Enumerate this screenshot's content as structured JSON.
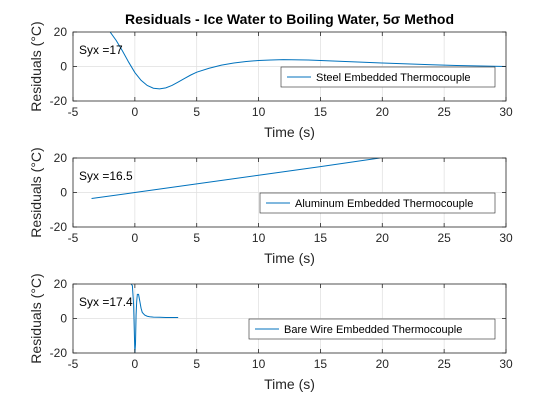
{
  "chart_data": [
    {
      "type": "line",
      "title": "Residuals - Ice Water to Boiling Water, 5σ Method",
      "xlabel": "Time (s)",
      "ylabel": "Residuals (°C)",
      "xlim": [
        -5,
        30
      ],
      "ylim": [
        -20,
        20
      ],
      "xticks": [
        "-5",
        "0",
        "5",
        "10",
        "15",
        "20",
        "25",
        "30"
      ],
      "yticks": [
        "20",
        "0",
        "-20"
      ],
      "grid": true,
      "legend_position": "center-right",
      "annotation": "Syx =17",
      "series": [
        {
          "name": "Steel Embedded Thermocouple",
          "color": "#0072BD",
          "x": [
            -2.0,
            -1.5,
            -1.0,
            -0.5,
            0.0,
            0.5,
            1.0,
            1.5,
            2.0,
            2.5,
            3.0,
            3.5,
            4.0,
            4.5,
            5.0,
            6.0,
            7.0,
            8.0,
            9.0,
            10.0,
            11.0,
            12.0,
            14.0,
            16.0,
            18.0,
            20.0,
            22.0,
            24.0,
            26.0,
            28.0,
            30.0
          ],
          "y": [
            20.0,
            15.0,
            9.0,
            2.5,
            -3.5,
            -8.0,
            -11.0,
            -12.6,
            -13.0,
            -12.4,
            -11.0,
            -9.0,
            -7.0,
            -5.0,
            -3.3,
            -1.0,
            0.8,
            2.0,
            2.9,
            3.5,
            3.8,
            4.0,
            3.8,
            3.2,
            2.6,
            2.0,
            1.5,
            1.0,
            0.6,
            0.3,
            0.0
          ]
        }
      ]
    },
    {
      "type": "line",
      "xlabel": "Time (s)",
      "ylabel": "Residuals (°C)",
      "xlim": [
        -5,
        30
      ],
      "ylim": [
        -20,
        20
      ],
      "xticks": [
        "-5",
        "0",
        "5",
        "10",
        "15",
        "20",
        "25",
        "30"
      ],
      "yticks": [
        "20",
        "0",
        "-20"
      ],
      "grid": true,
      "legend_position": "center-right",
      "annotation": "Syx =16.5",
      "series": [
        {
          "name": "Aluminum Embedded Thermocouple",
          "color": "#0072BD",
          "x": [
            -3.5,
            0.0,
            5.0,
            10.0,
            15.0,
            19.8
          ],
          "y": [
            -3.5,
            0.0,
            5.0,
            10.0,
            15.0,
            20.0
          ]
        }
      ]
    },
    {
      "type": "line",
      "xlabel": "Time (s)",
      "ylabel": "Residuals (°C)",
      "xlim": [
        -5,
        30
      ],
      "ylim": [
        -20,
        20
      ],
      "xticks": [
        "-5",
        "0",
        "5",
        "10",
        "15",
        "20",
        "25",
        "30"
      ],
      "yticks": [
        "20",
        "0",
        "-20"
      ],
      "grid": true,
      "legend_position": "center-right",
      "annotation": "Syx =17.4",
      "series": [
        {
          "name": "Bare Wire Embedded Thermocouple",
          "color": "#0072BD",
          "x": [
            -0.3,
            -0.2,
            -0.1,
            0.0,
            0.05,
            0.1,
            0.15,
            0.2,
            0.3,
            0.4,
            0.5,
            0.6,
            0.8,
            1.0,
            1.2,
            1.5,
            2.0,
            2.5,
            3.0,
            3.5
          ],
          "y": [
            20.0,
            19.0,
            8.0,
            -20.0,
            -15.0,
            2.0,
            10.0,
            14.0,
            14.0,
            10.0,
            6.0,
            3.5,
            2.0,
            1.3,
            1.0,
            0.8,
            0.7,
            0.6,
            0.6,
            0.6
          ]
        }
      ]
    }
  ]
}
